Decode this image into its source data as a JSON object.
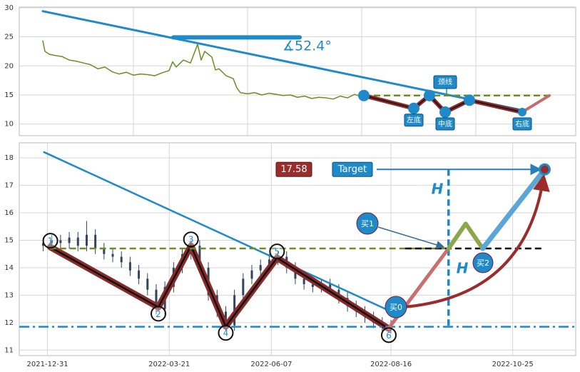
{
  "chart_data": [
    {
      "type": "line",
      "xlim": [
        0,
        78
      ],
      "ylim": [
        8,
        30.1
      ],
      "yticks": [
        10,
        15,
        20,
        25,
        30
      ],
      "xticks": [
        16,
        32,
        48,
        64
      ],
      "grid": true,
      "series": [
        {
          "color": "#6b8e23",
          "x": [
            3.3,
            3.6,
            4.2,
            5,
            6,
            7,
            8,
            9,
            10,
            11,
            12,
            13,
            14,
            15,
            16,
            17,
            18,
            19,
            20,
            21,
            21.5,
            22,
            23,
            24,
            25,
            25.5,
            26,
            27,
            27.5,
            28,
            29,
            30,
            30.5,
            31,
            32,
            33,
            34,
            35,
            36,
            37,
            38,
            39,
            40,
            41,
            42,
            43,
            44,
            45,
            46,
            47,
            48
          ],
          "values": [
            24.3,
            22.5,
            22.0,
            21.8,
            21.6,
            21.0,
            20.8,
            20.5,
            20.2,
            19.5,
            19.8,
            19.0,
            18.6,
            18.9,
            18.4,
            18.6,
            18.5,
            18.3,
            18.8,
            19.2,
            20.7,
            19.8,
            21.0,
            20.5,
            23.7,
            21.0,
            22.5,
            21.5,
            19.3,
            19.5,
            18.3,
            17.8,
            16.2,
            15.4,
            15.2,
            15.4,
            15.0,
            15.3,
            15.1,
            14.9,
            15.0,
            14.6,
            14.8,
            14.4,
            14.6,
            14.5,
            14.3,
            14.8,
            14.5,
            15.1,
            14.7
          ]
        },
        {
          "color": "#1f8ac9",
          "x": [
            3.3,
            70.8
          ],
          "values": [
            29.4,
            12.3
          ]
        },
        {
          "color": "#1f8ac9",
          "x": [
            21.6,
            39.3
          ],
          "values": [
            24.9,
            24.9
          ]
        },
        {
          "color": "#6b8e23",
          "style": "dashed",
          "x": [
            48.3,
            74.3
          ],
          "values": [
            14.9,
            14.9
          ]
        },
        {
          "color": "#8b2a2a",
          "x": [
            48.3,
            55.3,
            57.5,
            59.7,
            63.1,
            70.5
          ],
          "values": [
            14.9,
            12.7,
            14.9,
            12.05,
            14.1,
            12.05
          ],
          "point_labels": [
            null,
            "左底",
            null,
            "中底",
            null,
            "右底"
          ]
        },
        {
          "color": "#c86a6a",
          "x": [
            70.5,
            74.3
          ],
          "values": [
            12.05,
            14.9
          ]
        }
      ],
      "angle_label": "∡52.4°",
      "neckline_label": "颈线"
    },
    {
      "type": "candlestick",
      "xlim": [
        -13,
        243
      ],
      "ylim": [
        10.8,
        18.55
      ],
      "yticks": [
        11,
        12,
        13,
        14,
        15,
        16,
        17,
        18
      ],
      "xticks": [
        {
          "value": 0,
          "label": "2021-12-31"
        },
        {
          "value": 56,
          "label": "2022-03-21"
        },
        {
          "value": 103,
          "label": "2022-06-07"
        },
        {
          "value": 158,
          "label": "2022-08-16"
        },
        {
          "value": 214,
          "label": "2022-10-25"
        }
      ],
      "grid": true,
      "color": "#34445e",
      "x": [
        -2,
        2,
        6,
        10,
        14,
        18,
        22,
        26,
        30,
        34,
        38,
        42,
        46,
        50,
        54,
        58,
        62,
        66,
        70,
        74,
        78,
        82,
        86,
        90,
        94,
        98,
        102,
        106,
        110,
        114,
        118,
        122,
        126,
        130,
        134,
        138,
        142,
        146,
        150,
        154,
        158
      ],
      "open": [
        14.8,
        14.9,
        15.0,
        14.9,
        15.1,
        14.8,
        15.2,
        14.7,
        14.5,
        14.4,
        14.2,
        13.9,
        13.6,
        13.2,
        12.5,
        13.3,
        14.0,
        14.5,
        14.8,
        14.0,
        13.0,
        12.4,
        11.9,
        13.0,
        13.6,
        13.9,
        14.1,
        14.3,
        14.4,
        14.0,
        13.6,
        13.4,
        13.3,
        13.4,
        13.2,
        12.9,
        12.6,
        12.4,
        12.2,
        12.0,
        11.9
      ],
      "high": [
        15.1,
        15.2,
        15.2,
        15.3,
        15.3,
        15.7,
        15.4,
        14.9,
        14.7,
        14.6,
        14.4,
        14.1,
        13.8,
        13.4,
        13.5,
        14.2,
        14.7,
        15.0,
        15.0,
        14.2,
        13.2,
        12.6,
        13.2,
        13.8,
        14.1,
        14.3,
        14.5,
        14.6,
        14.6,
        14.2,
        13.8,
        13.6,
        13.6,
        13.6,
        13.4,
        13.1,
        12.8,
        12.6,
        12.4,
        12.2,
        12.1
      ],
      "low": [
        14.6,
        14.7,
        14.7,
        14.7,
        14.6,
        14.6,
        14.5,
        14.3,
        14.2,
        14.0,
        13.7,
        13.4,
        13.0,
        12.3,
        12.3,
        13.1,
        13.8,
        14.3,
        13.8,
        12.8,
        12.2,
        11.7,
        11.7,
        12.8,
        13.4,
        13.7,
        13.9,
        14.1,
        13.8,
        13.4,
        13.2,
        13.1,
        13.1,
        13.0,
        12.7,
        12.4,
        12.2,
        12.0,
        11.8,
        11.7,
        11.6
      ],
      "close": [
        14.9,
        15.0,
        14.9,
        15.1,
        14.8,
        15.2,
        14.7,
        14.5,
        14.4,
        14.2,
        13.9,
        13.6,
        13.2,
        12.5,
        13.3,
        14.0,
        14.5,
        14.8,
        14.0,
        13.0,
        12.4,
        11.9,
        13.0,
        13.6,
        13.9,
        14.1,
        14.3,
        14.4,
        14.0,
        13.6,
        13.4,
        13.3,
        13.4,
        13.2,
        12.9,
        12.6,
        12.4,
        12.2,
        12.0,
        11.9,
        11.8
      ],
      "series": [
        {
          "color": "#1f8ac9",
          "x": [
            -1.6,
            158.2
          ],
          "values": [
            18.21,
            12.4
          ]
        },
        {
          "color": "#8b2a2a",
          "x": [
            1.3,
            51,
            66,
            82,
            105.6,
            157
          ],
          "values": [
            14.75,
            12.56,
            14.8,
            11.86,
            14.36,
            11.78
          ],
          "point_labels": [
            "1",
            "2",
            "3",
            "4",
            "5",
            "6"
          ]
        },
        {
          "color": "#6b8e23",
          "style": "dashed",
          "x": [
            1,
            184.5
          ],
          "values": [
            14.7,
            14.7
          ]
        },
        {
          "color": "#000000",
          "style": "dashed",
          "x": [
            164.5,
            228.7
          ],
          "values": [
            14.7,
            14.7
          ]
        },
        {
          "color": "#1f8ac9",
          "style": "dashdot",
          "x": [
            -13,
            243
          ],
          "values": [
            11.85,
            11.85
          ]
        },
        {
          "color": "#1f8ac9",
          "style": "dashed",
          "x": [
            184.5,
            184.5
          ],
          "values": [
            17.58,
            11.85
          ]
        },
        {
          "color": "#c87070",
          "x": [
            157,
            184.5
          ],
          "values": [
            11.8,
            14.7
          ]
        },
        {
          "color": "#8aa84a",
          "x": [
            184.5,
            192.4,
            200.2
          ],
          "values": [
            14.7,
            15.6,
            14.7
          ]
        },
        {
          "color": "#5ba6d8",
          "x": [
            200.2,
            228.7
          ],
          "values": [
            14.7,
            17.58
          ]
        }
      ],
      "target": {
        "label": "Target",
        "value": 17.58,
        "x": 228.7
      },
      "buy_labels": [
        "买0",
        "买1",
        "买2"
      ],
      "height_labels": [
        "H",
        "H"
      ]
    }
  ]
}
